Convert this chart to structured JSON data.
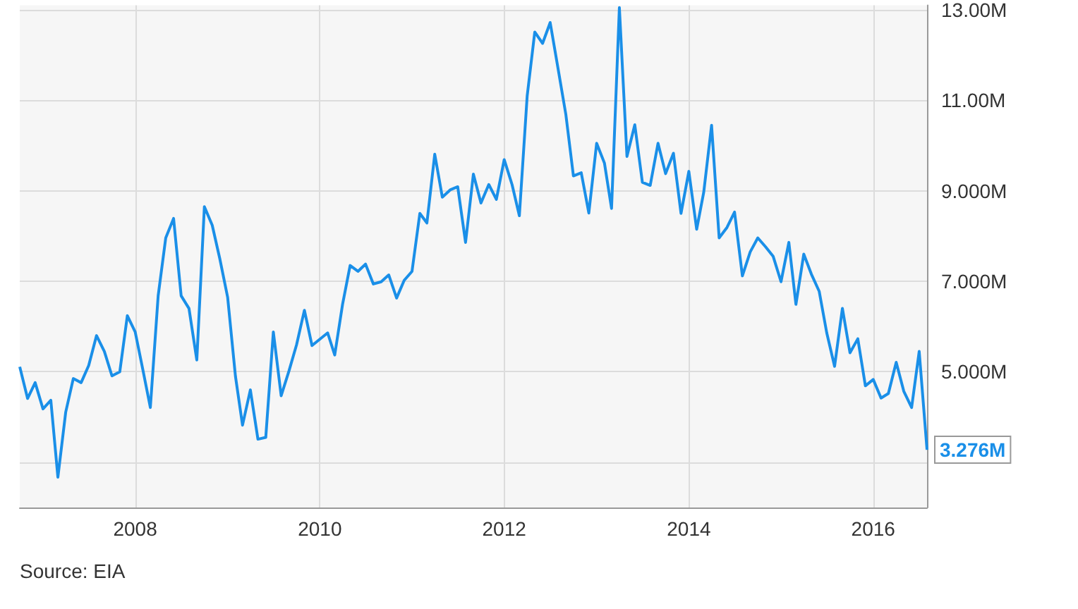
{
  "chart_data": {
    "type": "line",
    "annotations": [
      "Source: EIA"
    ],
    "x": [
      "2006-10",
      "2006-11",
      "2006-12",
      "2007-01",
      "2007-02",
      "2007-03",
      "2007-04",
      "2007-05",
      "2007-06",
      "2007-07",
      "2007-08",
      "2007-09",
      "2007-10",
      "2007-11",
      "2007-12",
      "2008-01",
      "2008-02",
      "2008-03",
      "2008-04",
      "2008-05",
      "2008-06",
      "2008-07",
      "2008-08",
      "2008-09",
      "2008-10",
      "2008-11",
      "2008-12",
      "2009-01",
      "2009-02",
      "2009-03",
      "2009-04",
      "2009-05",
      "2009-06",
      "2009-07",
      "2009-08",
      "2009-09",
      "2009-10",
      "2009-11",
      "2009-12",
      "2010-01",
      "2010-02",
      "2010-03",
      "2010-04",
      "2010-05",
      "2010-06",
      "2010-07",
      "2010-08",
      "2010-09",
      "2010-10",
      "2010-11",
      "2010-12",
      "2011-01",
      "2011-02",
      "2011-03",
      "2011-04",
      "2011-05",
      "2011-06",
      "2011-07",
      "2011-08",
      "2011-09",
      "2011-10",
      "2011-11",
      "2011-12",
      "2012-01",
      "2012-02",
      "2012-03",
      "2012-04",
      "2012-05",
      "2012-06",
      "2012-07",
      "2012-08",
      "2012-09",
      "2012-10",
      "2012-11",
      "2012-12",
      "2013-01",
      "2013-02",
      "2013-03",
      "2013-04",
      "2013-05",
      "2013-06",
      "2013-07",
      "2013-08",
      "2013-09",
      "2013-10",
      "2013-11",
      "2013-12",
      "2014-01",
      "2014-02",
      "2014-03",
      "2014-04",
      "2014-05",
      "2014-06",
      "2014-07",
      "2014-08",
      "2014-09",
      "2014-10",
      "2014-11",
      "2014-12",
      "2015-01",
      "2015-02",
      "2015-03",
      "2015-04",
      "2015-05",
      "2015-06",
      "2015-07",
      "2015-08",
      "2015-09",
      "2015-10",
      "2015-11",
      "2015-12",
      "2016-01",
      "2016-02",
      "2016-03",
      "2016-04",
      "2016-05",
      "2016-06",
      "2016-07",
      "2016-08"
    ],
    "series": [
      {
        "color": "#1a8fe8",
        "values": [
          5.11,
          4.41,
          4.76,
          4.18,
          4.37,
          2.67,
          4.11,
          4.85,
          4.76,
          5.14,
          5.8,
          5.45,
          4.91,
          5.0,
          6.24,
          5.88,
          5.03,
          4.21,
          6.68,
          7.96,
          8.39,
          6.68,
          6.4,
          5.26,
          8.65,
          8.24,
          7.5,
          6.65,
          4.9,
          3.82,
          4.6,
          3.51,
          3.55,
          5.88,
          4.47,
          5.02,
          5.6,
          6.36,
          5.58,
          5.72,
          5.86,
          5.37,
          6.49,
          7.35,
          7.22,
          7.38,
          6.94,
          6.99,
          7.14,
          6.63,
          7.02,
          7.22,
          8.5,
          8.29,
          9.81,
          8.86,
          9.02,
          9.09,
          7.86,
          9.37,
          8.73,
          9.14,
          8.81,
          9.69,
          9.14,
          8.45,
          11.1,
          12.51,
          12.26,
          12.72,
          11.71,
          10.69,
          9.33,
          9.4,
          8.51,
          10.05,
          9.61,
          8.61,
          13.05,
          9.76,
          10.46,
          9.19,
          9.12,
          10.05,
          9.38,
          9.83,
          8.5,
          9.43,
          8.15,
          8.97,
          10.45,
          7.96,
          8.19,
          8.53,
          7.12,
          7.65,
          7.96,
          7.76,
          7.55,
          6.99,
          7.86,
          6.49,
          7.6,
          7.16,
          6.78,
          5.86,
          5.12,
          6.4,
          5.42,
          5.73,
          4.69,
          4.83,
          4.42,
          4.52,
          5.21,
          4.57,
          4.21,
          5.45,
          3.276
        ],
        "value_labels": [
          null,
          null,
          null,
          null,
          null,
          null,
          null,
          null,
          null,
          null,
          null,
          null,
          null,
          null,
          null,
          null,
          null,
          null,
          null,
          null,
          null,
          null,
          null,
          null,
          null,
          null,
          null,
          null,
          null,
          null,
          null,
          null,
          null,
          null,
          null,
          null,
          null,
          null,
          null,
          null,
          null,
          null,
          null,
          null,
          null,
          null,
          null,
          null,
          null,
          null,
          null,
          null,
          null,
          null,
          null,
          null,
          null,
          null,
          null,
          null,
          null,
          null,
          null,
          null,
          null,
          null,
          null,
          null,
          null,
          null,
          null,
          null,
          null,
          null,
          null,
          null,
          null,
          null,
          null,
          null,
          null,
          null,
          null,
          null,
          null,
          null,
          null,
          null,
          null,
          null,
          null,
          null,
          null,
          null,
          null,
          null,
          null,
          null,
          null,
          null,
          null,
          null,
          null,
          null,
          null,
          null,
          null,
          null,
          null,
          null,
          null,
          null,
          null,
          null,
          null,
          null,
          null,
          null,
          "3.276M"
        ]
      }
    ],
    "xlim": [
      "2006-10",
      "2016-08"
    ],
    "xticks": [
      "2008",
      "2010",
      "2012",
      "2014",
      "2016"
    ],
    "ylim": [
      2,
      13.1
    ],
    "yticks": [
      {
        "value": 3,
        "label": null
      },
      {
        "value": 5,
        "label": "5.000M"
      },
      {
        "value": 7,
        "label": "7.000M"
      },
      {
        "value": 9,
        "label": "9.000M"
      },
      {
        "value": 11,
        "label": "11.00M"
      },
      {
        "value": 13,
        "label": "13.00M"
      }
    ],
    "grid": true,
    "marker": "none",
    "line_style": "solid"
  }
}
